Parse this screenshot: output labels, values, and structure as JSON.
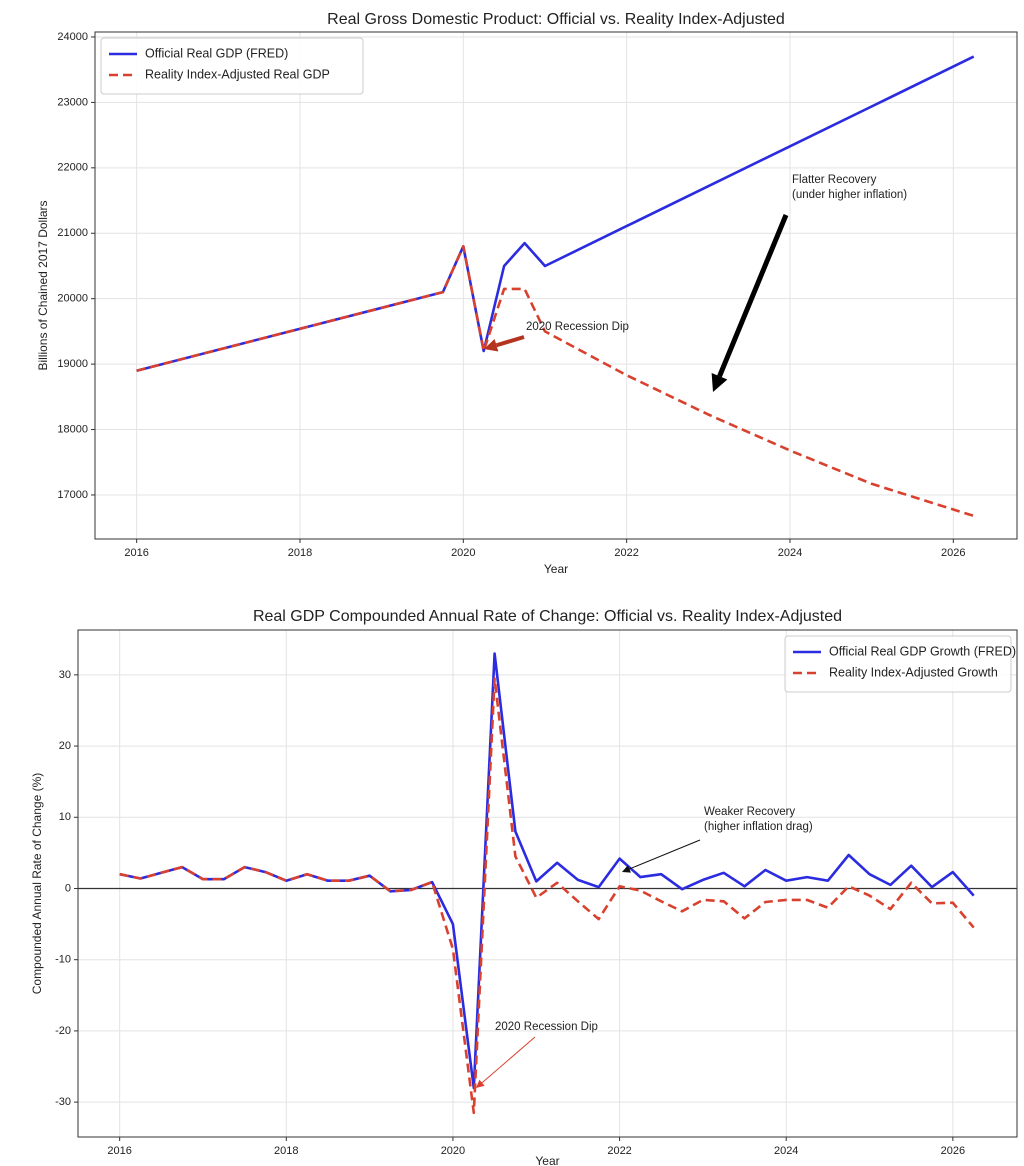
{
  "chart_data": [
    {
      "type": "line",
      "title": "Real Gross Domestic Product: Official vs. Reality Index-Adjusted",
      "x_label": "Year",
      "y_label": "Billions of Chained 2017 Dollars",
      "x": [
        2016,
        2019.75,
        2020,
        2020.25,
        2020.5,
        2020.75,
        2021,
        2022,
        2023,
        2024,
        2025,
        2026.25
      ],
      "series": [
        {
          "name": "Official Real GDP (FRED)",
          "color": "#2b2be0",
          "linestyle": "solid",
          "values": [
            18900,
            20100,
            20800,
            19200,
            20500,
            20850,
            20500,
            21110,
            21719,
            22329,
            22938,
            23700
          ]
        },
        {
          "name": "Reality Index-Adjusted Real GDP",
          "color": "#d9412f",
          "linestyle": "dashed",
          "values": [
            18900,
            20100,
            20800,
            19200,
            20150,
            20150,
            19500,
            18830,
            18230,
            17680,
            17170,
            16680
          ]
        }
      ],
      "xlim": [
        2015.49,
        2026.78
      ],
      "ylim": [
        16327,
        24076
      ],
      "xticks": [
        2016,
        2018,
        2020,
        2022,
        2024,
        2026
      ],
      "yticks": [
        17000,
        18000,
        19000,
        20000,
        21000,
        22000,
        23000,
        24000
      ],
      "grid": true,
      "legend": "upper-left",
      "annotations": [
        {
          "text": [
            "2020 Recession Dip"
          ]
        },
        {
          "text": [
            "Flatter Recovery",
            "(under higher inflation)"
          ]
        }
      ]
    },
    {
      "type": "line",
      "title": "Real GDP Compounded Annual Rate of Change: Official vs. Reality Index-Adjusted",
      "x_label": "Year",
      "y_label": "Compounded Annual Rate of Change (%)",
      "x": [
        2016,
        2016.25,
        2016.5,
        2016.75,
        2017,
        2017.25,
        2017.5,
        2017.75,
        2018,
        2018.25,
        2018.5,
        2018.75,
        2019,
        2019.25,
        2019.5,
        2019.75,
        2020,
        2020.25,
        2020.5,
        2020.75,
        2021,
        2021.25,
        2021.5,
        2021.75,
        2022,
        2022.25,
        2022.5,
        2022.75,
        2023,
        2023.25,
        2023.5,
        2023.75,
        2024,
        2024.25,
        2024.5,
        2024.75,
        2025,
        2025.25,
        2025.5,
        2025.75,
        2026,
        2026.25
      ],
      "series": [
        {
          "name": "Official Real GDP Growth (FRED)",
          "color": "#2b2be0",
          "linestyle": "solid",
          "values": [
            2.0,
            1.4,
            2.2,
            3.0,
            1.3,
            1.3,
            3.0,
            2.3,
            1.1,
            2.0,
            1.1,
            1.1,
            1.8,
            -0.4,
            -0.2,
            0.9,
            -5.0,
            -28.0,
            33.0,
            8.0,
            1.0,
            3.6,
            1.2,
            0.2,
            4.2,
            1.6,
            2.0,
            -0.1,
            1.2,
            2.2,
            0.3,
            2.6,
            1.1,
            1.6,
            1.1,
            4.7,
            2.0,
            0.5,
            3.2,
            0.2,
            2.3,
            -1.0
          ]
        },
        {
          "name": "Reality Index-Adjusted Growth",
          "color": "#d9412f",
          "linestyle": "dashed",
          "values": [
            2.0,
            1.4,
            2.2,
            3.0,
            1.3,
            1.3,
            3.0,
            2.3,
            1.1,
            2.0,
            1.1,
            1.1,
            1.8,
            -0.4,
            -0.2,
            0.9,
            -8.5,
            -31.5,
            29.5,
            4.5,
            -1.3,
            0.8,
            -1.8,
            -4.3,
            0.3,
            -0.3,
            -1.8,
            -3.2,
            -1.6,
            -1.8,
            -4.2,
            -1.9,
            -1.6,
            -1.6,
            -2.7,
            0.3,
            -1.0,
            -2.9,
            0.8,
            -2.1,
            -2.0,
            -5.5
          ]
        }
      ],
      "xlim": [
        2015.5,
        2026.77
      ],
      "ylim": [
        -34.9,
        36.3
      ],
      "xticks": [
        2016,
        2018,
        2020,
        2022,
        2024,
        2026
      ],
      "yticks": [
        -30,
        -20,
        -10,
        0,
        10,
        20,
        30
      ],
      "hline": 0,
      "grid": true,
      "legend": "upper-right",
      "annotations": [
        {
          "text": [
            "Weaker Recovery",
            "(higher inflation drag)"
          ]
        },
        {
          "text": [
            "2020 Recession Dip"
          ]
        }
      ]
    }
  ]
}
